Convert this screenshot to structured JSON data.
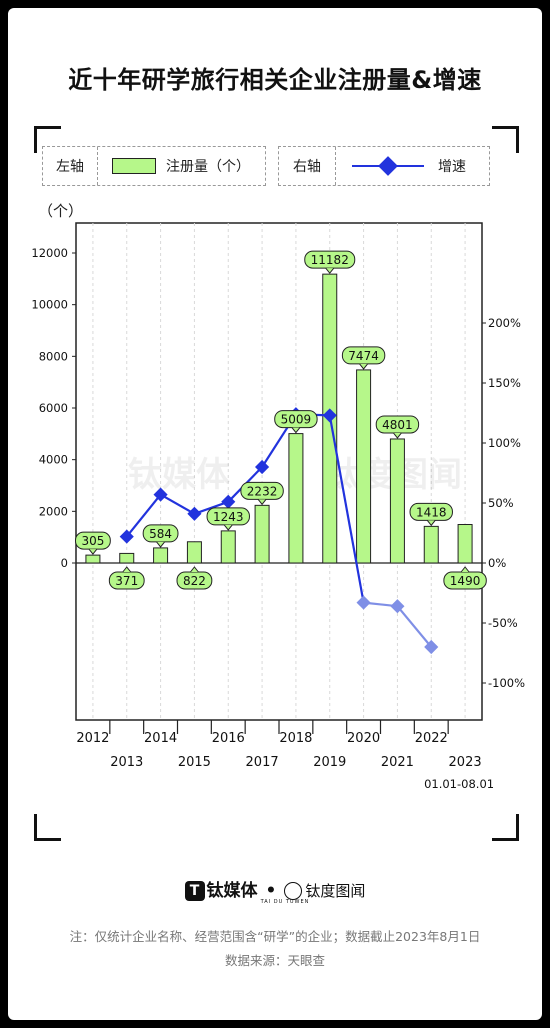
{
  "title": "近十年研学旅行相关企业注册量&增速",
  "legend": {
    "left_axis_label": "左轴",
    "bar_series_label": "注册量（个）",
    "right_axis_label": "右轴",
    "line_series_label": "增速"
  },
  "unit_label": "（个）",
  "watermark": {
    "text1": "钛媒体",
    "text2": "钛度图闻"
  },
  "chart_data": {
    "type": "bar+line",
    "categories": [
      "2012",
      "2013",
      "2014",
      "2015",
      "2016",
      "2017",
      "2018",
      "2019",
      "2020",
      "2021",
      "2022",
      "2023"
    ],
    "x_note": "01.01-08.01",
    "bar_series": {
      "name": "注册量（个）",
      "values": [
        305,
        371,
        584,
        822,
        1243,
        2232,
        5009,
        11182,
        7474,
        4801,
        1418,
        1490
      ]
    },
    "bar_labels": [
      "305",
      "371",
      "584",
      "822",
      "1243",
      "2232",
      "5009",
      "11182",
      "7474",
      "4801",
      "1418",
      "1490"
    ],
    "line_series": {
      "name": "增速",
      "values_pct": [
        null,
        22,
        57,
        41,
        51,
        80,
        124,
        123,
        -33,
        -36,
        -70,
        null
      ]
    },
    "left_axis": {
      "min": -6000,
      "max": 12000,
      "ticks": [
        0,
        2000,
        4000,
        6000,
        8000,
        10000,
        12000
      ],
      "tick_labels": [
        "0",
        "2000",
        "4000",
        "6000",
        "8000",
        "10000",
        "12000"
      ]
    },
    "right_axis": {
      "ticks": [
        -100,
        -50,
        0,
        50,
        100,
        150,
        200
      ],
      "tick_labels": [
        "-100%",
        "-50%",
        "0%",
        "50%",
        "100%",
        "150%",
        "200%"
      ]
    },
    "colors": {
      "bar": "#b6f78a",
      "line": "#2233dd",
      "line_negative": "#7f8fe6",
      "grid": "#d9d9d9"
    },
    "grid": "vertical-dashed",
    "legend_position": "top"
  },
  "footer": {
    "brand1": "钛媒体",
    "separator": "•",
    "brand2": "钛度图闻",
    "brand2_sub": "TAI DU TUWEN",
    "note": "注：仅统计企业名称、经营范围含“研学”的企业；数据截止2023年8月1日",
    "source": "数据来源：天眼查"
  }
}
